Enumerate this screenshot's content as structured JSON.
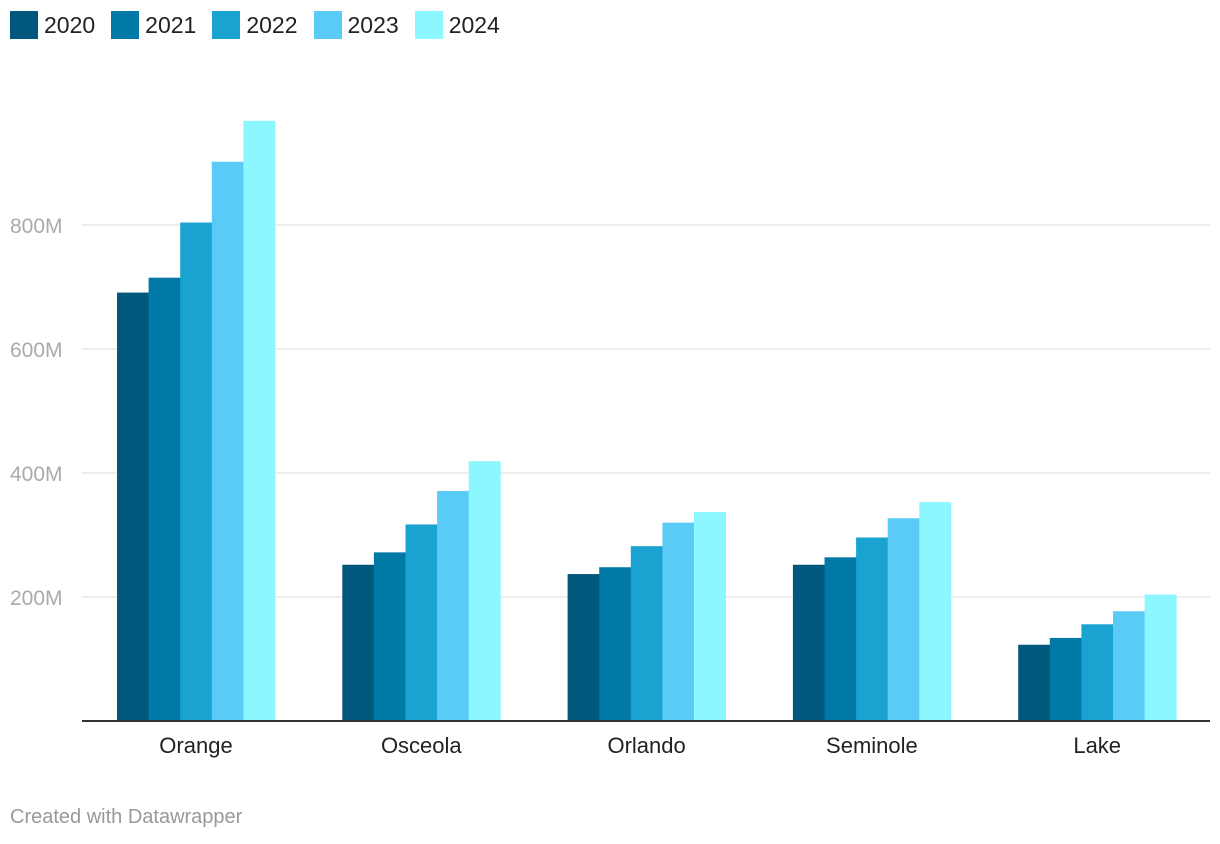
{
  "chart_data": {
    "type": "bar",
    "title": "",
    "xlabel": "",
    "ylabel": "",
    "categories": [
      "Orange",
      "Osceola",
      "Orlando",
      "Seminole",
      "Lake"
    ],
    "series": [
      {
        "name": "2020",
        "color": "#00587c",
        "values": [
          691,
          252,
          237,
          252,
          123
        ]
      },
      {
        "name": "2021",
        "color": "#0079a6",
        "values": [
          715,
          272,
          248,
          264,
          134
        ]
      },
      {
        "name": "2022",
        "color": "#1aa3d0",
        "values": [
          804,
          317,
          282,
          296,
          156
        ]
      },
      {
        "name": "2023",
        "color": "#5acbf7",
        "values": [
          902,
          371,
          320,
          327,
          177
        ]
      },
      {
        "name": "2024",
        "color": "#8cf7ff",
        "values": [
          968,
          419,
          337,
          353,
          204
        ]
      }
    ],
    "ylim": [
      0,
      1000
    ],
    "yticks": [
      {
        "value": 200,
        "label": "200M"
      },
      {
        "value": 400,
        "label": "400M"
      },
      {
        "value": 600,
        "label": "600M"
      },
      {
        "value": 800,
        "label": "800M"
      }
    ],
    "grid": true,
    "legend_position": "top-left",
    "footer": "Created with Datawrapper"
  }
}
